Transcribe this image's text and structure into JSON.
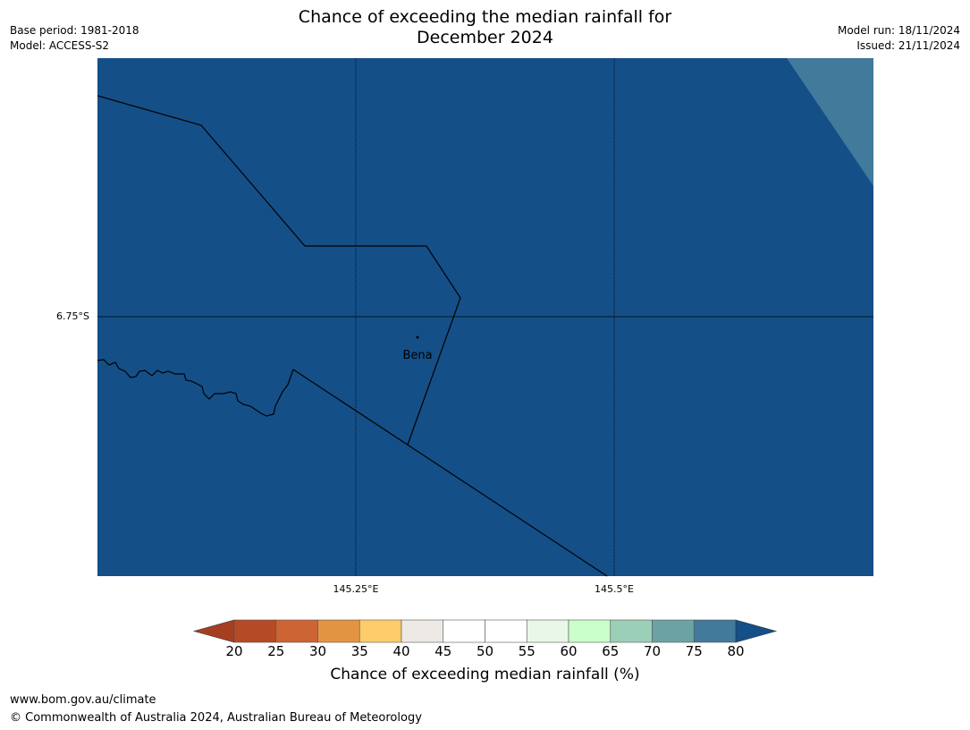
{
  "header": {
    "title_line1": "Chance of exceeding the median rainfall for",
    "title_line2": "December 2024",
    "base_period": "Base period: 1981-2018",
    "model": "Model: ACCESS-S2",
    "model_run": "Model run: 18/11/2024",
    "issued": "Issued: 21/11/2024"
  },
  "map": {
    "place_label": "Bena",
    "lat_labels": [
      "6.75°S"
    ],
    "lon_labels": [
      "145.25°E",
      "145.5°E"
    ],
    "colors": {
      "main_fill": "#144f88",
      "corner_fill": "#417a9b",
      "boundary": "#000000"
    },
    "dominant_category": "80+"
  },
  "colorbar": {
    "ticks": [
      "20",
      "25",
      "30",
      "35",
      "40",
      "45",
      "50",
      "55",
      "60",
      "65",
      "70",
      "75",
      "80"
    ],
    "colors": [
      "#a63e22",
      "#b44a26",
      "#cd6434",
      "#e39443",
      "#fecd69",
      "#ede9e4",
      "#ffffff",
      "#ffffff",
      "#e8f7e8",
      "#caffca",
      "#9ccfb8",
      "#6ba3a5",
      "#417a9b",
      "#144f88"
    ],
    "label": "Chance of exceeding median rainfall (%)"
  },
  "footer": {
    "url": "www.bom.gov.au/climate",
    "copyright": "© Commonwealth of Australia 2024, Australian Bureau of Meteorology"
  }
}
